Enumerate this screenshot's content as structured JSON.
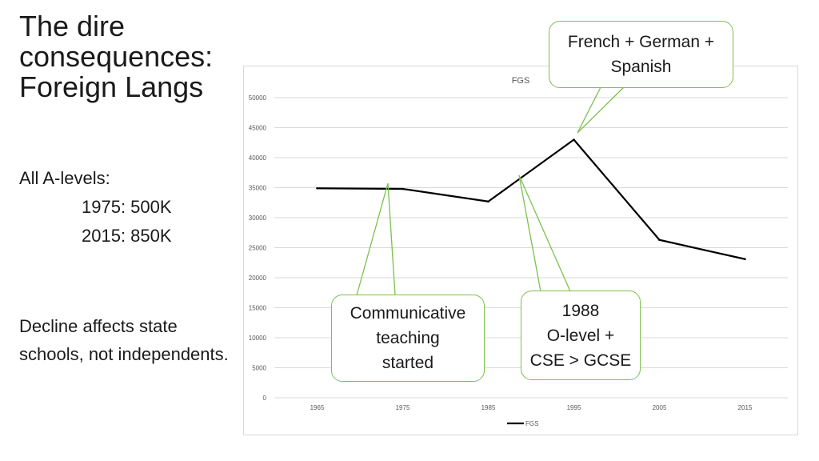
{
  "slide": {
    "title_lines": [
      "The dire",
      "consequences:",
      "Foreign Langs"
    ],
    "a_levels": {
      "heading": "All A-levels:",
      "line1": "1975: 500K",
      "line2": "2015: 850K"
    },
    "decline_note": "Decline affects state schools, not independents."
  },
  "callouts": {
    "fgs": [
      "French + German +",
      "Spanish"
    ],
    "communicative": [
      "Communicative",
      "teaching",
      "started"
    ],
    "gcse": [
      "1988",
      "O-level +",
      "CSE > GCSE"
    ]
  },
  "colors": {
    "line": "#000000",
    "callout_border": "#7cc04f",
    "gridline": "#d9d9d9",
    "axis_text": "#595959"
  },
  "chart_data": {
    "type": "line",
    "title": "FGS",
    "categories": [
      "1965",
      "1975",
      "1985",
      "1995",
      "2005",
      "2015"
    ],
    "series": [
      {
        "name": "FGS",
        "values": [
          34900,
          34800,
          32700,
          43000,
          26300,
          23100
        ]
      }
    ],
    "y_ticks": [
      "0",
      "5000",
      "10000",
      "15000",
      "20000",
      "25000",
      "30000",
      "35000",
      "40000",
      "45000",
      "50000"
    ],
    "ylim": [
      0,
      50000
    ],
    "grid": true,
    "legend_position": "bottom",
    "annotations": [
      {
        "text": "French + German + Spanish",
        "x": "1995"
      },
      {
        "text": "Communicative teaching started",
        "x": "1975"
      },
      {
        "text": "1988 O-level + CSE > GCSE",
        "x": "1988"
      }
    ]
  }
}
